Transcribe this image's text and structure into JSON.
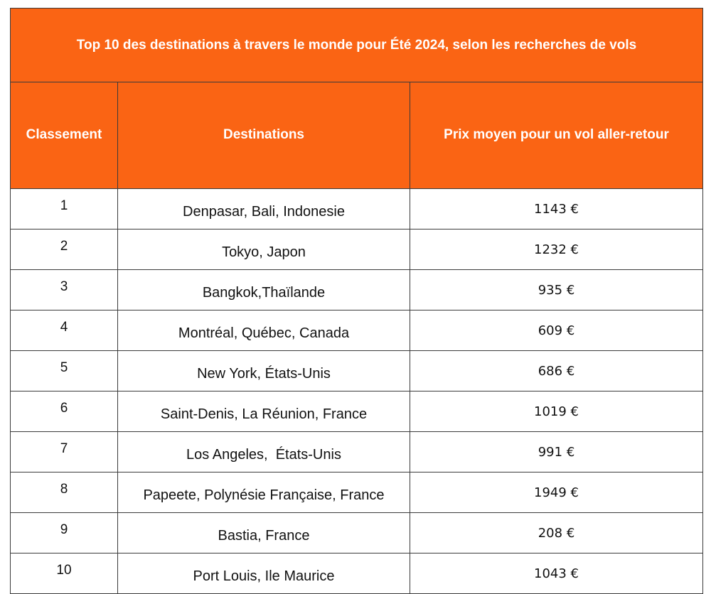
{
  "table": {
    "title": "Top 10 des destinations à travers le monde pour Été 2024, selon les recherches de vols",
    "columns": [
      "Classement",
      "Destinations",
      "Prix moyen pour un vol aller-retour"
    ],
    "rows": [
      {
        "rank": "1",
        "destination": "Denpasar, Bali, Indonesie",
        "price": "1143 €"
      },
      {
        "rank": "2",
        "destination": "Tokyo, Japon",
        "price": "1232 €"
      },
      {
        "rank": "3",
        "destination": "Bangkok,Thaïlande",
        "price": "935 €"
      },
      {
        "rank": "4",
        "destination": "Montréal, Québec, Canada",
        "price": "609 €"
      },
      {
        "rank": "5",
        "destination": "New York, États-Unis",
        "price": "686 €"
      },
      {
        "rank": "6",
        "destination": "Saint-Denis, La Réunion, France",
        "price": "1019 €"
      },
      {
        "rank": "7",
        "destination": "Los Angeles,  États-Unis",
        "price": "991 €"
      },
      {
        "rank": "8",
        "destination": "Papeete, Polynésie Française, France",
        "price": "1949 €"
      },
      {
        "rank": "9",
        "destination": "Bastia, France",
        "price": "208 €"
      },
      {
        "rank": "10",
        "destination": "Port Louis, Ile Maurice",
        "price": "1043 €"
      }
    ]
  },
  "colors": {
    "header_background": "#fa6414",
    "header_text": "#ffffff",
    "border": "#3a3a3a"
  }
}
